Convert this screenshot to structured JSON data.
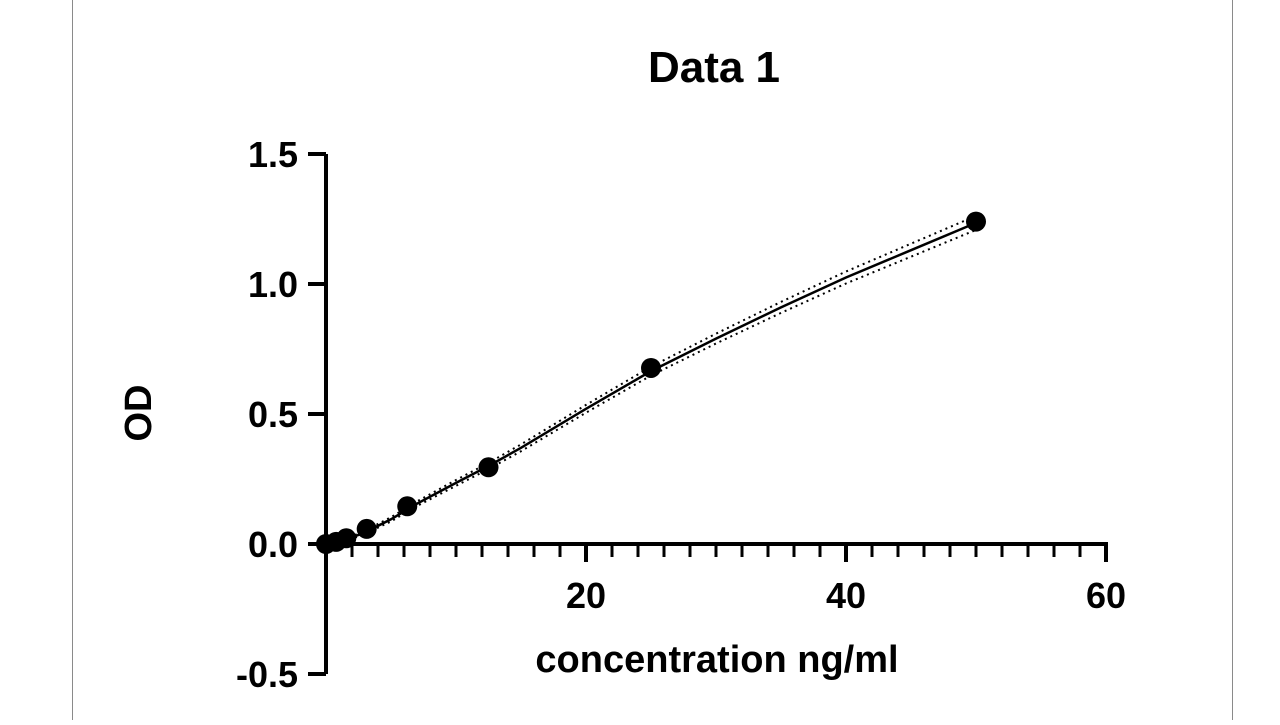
{
  "chart_data": {
    "type": "scatter",
    "title": "Data 1",
    "xlabel": "concentration ng/ml",
    "ylabel": "OD",
    "xlim": [
      0,
      60
    ],
    "ylim": [
      -0.5,
      1.5
    ],
    "x_ticks": [
      {
        "value": 20,
        "label": "20"
      },
      {
        "value": 40,
        "label": "40"
      },
      {
        "value": 60,
        "label": "60"
      }
    ],
    "x_minor_step": 2,
    "y_ticks": [
      {
        "value": 1.5,
        "label": "1.5"
      },
      {
        "value": 1.0,
        "label": "1.0"
      },
      {
        "value": 0.5,
        "label": "0.5"
      },
      {
        "value": 0.0,
        "label": "0.0"
      },
      {
        "value": -0.5,
        "label": "-0.5"
      }
    ],
    "grid": false,
    "series": [
      {
        "x": [
          0,
          0.78,
          1.56,
          3.13,
          6.25,
          12.5,
          25,
          50
        ],
        "y": [
          0.0,
          0.008,
          0.022,
          0.058,
          0.145,
          0.295,
          0.677,
          1.24
        ],
        "marker": "circle",
        "color": "#000000"
      }
    ],
    "fit_curve": {
      "style": "solid",
      "x": [
        0,
        1,
        2,
        3,
        5,
        7,
        10,
        12.5,
        15,
        20,
        25,
        30,
        35,
        40,
        45,
        50
      ],
      "y": [
        0.0,
        0.01,
        0.025,
        0.045,
        0.095,
        0.155,
        0.235,
        0.3,
        0.37,
        0.52,
        0.665,
        0.79,
        0.91,
        1.025,
        1.13,
        1.235
      ]
    },
    "confidence_band": {
      "style": "dotted",
      "upper_offset": [
        0.004,
        0.004,
        0.005,
        0.006,
        0.008,
        0.009,
        0.011,
        0.012,
        0.013,
        0.015,
        0.017,
        0.019,
        0.021,
        0.023,
        0.025,
        0.027
      ],
      "lower_offset": [
        0.004,
        0.004,
        0.005,
        0.006,
        0.008,
        0.009,
        0.011,
        0.012,
        0.013,
        0.015,
        0.017,
        0.019,
        0.021,
        0.023,
        0.025,
        0.027
      ]
    }
  }
}
